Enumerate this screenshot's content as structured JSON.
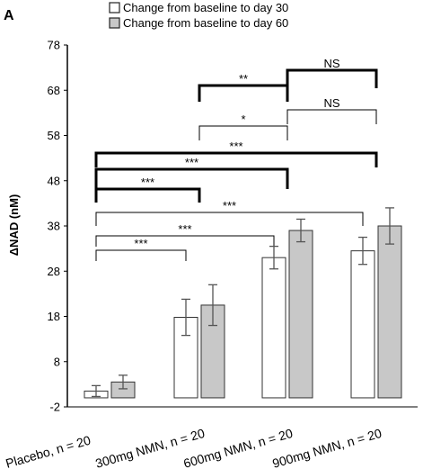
{
  "panel_label": "A",
  "chart_data": {
    "type": "bar",
    "title": "",
    "xlabel": "",
    "ylabel": "ΔNAD (nM)",
    "ylim": [
      -2,
      78
    ],
    "yticks": [
      -2,
      8,
      18,
      28,
      38,
      48,
      58,
      68,
      78
    ],
    "categories": [
      "Placebo, n = 20",
      "300mg NMN, n = 20",
      "600mg NMN, n = 20",
      "900mg NMN, n = 20"
    ],
    "series": [
      {
        "name": "Change from baseline to day 30",
        "color": "#ffffff",
        "values": [
          1.5,
          17.8,
          31.0,
          32.5
        ],
        "error": [
          1.2,
          4.0,
          2.5,
          3.0
        ]
      },
      {
        "name": "Change from baseline to day 60",
        "color": "#c8c8c8",
        "values": [
          3.5,
          20.5,
          37.0,
          38.0
        ],
        "error": [
          1.5,
          4.5,
          2.5,
          4.0
        ]
      }
    ],
    "legend_position": "top",
    "grid": false,
    "comparisons": [
      {
        "from": 0,
        "to": 1,
        "label": "***",
        "style": "thin"
      },
      {
        "from": 0,
        "to": 2,
        "label": "***",
        "style": "thin"
      },
      {
        "from": 0,
        "to": 3,
        "label": "***",
        "style": "thin"
      },
      {
        "from": 0,
        "to": 1,
        "label": "***",
        "style": "thick"
      },
      {
        "from": 0,
        "to": 2,
        "label": "***",
        "style": "thick"
      },
      {
        "from": 0,
        "to": 3,
        "label": "***",
        "style": "thick"
      },
      {
        "from": 1,
        "to": 2,
        "label": "*",
        "style": "thin"
      },
      {
        "from": 2,
        "to": 3,
        "label": "NS",
        "style": "thin"
      },
      {
        "from": 1,
        "to": 2,
        "label": "**",
        "style": "thick"
      },
      {
        "from": 2,
        "to": 3,
        "label": "NS",
        "style": "thick"
      }
    ]
  }
}
